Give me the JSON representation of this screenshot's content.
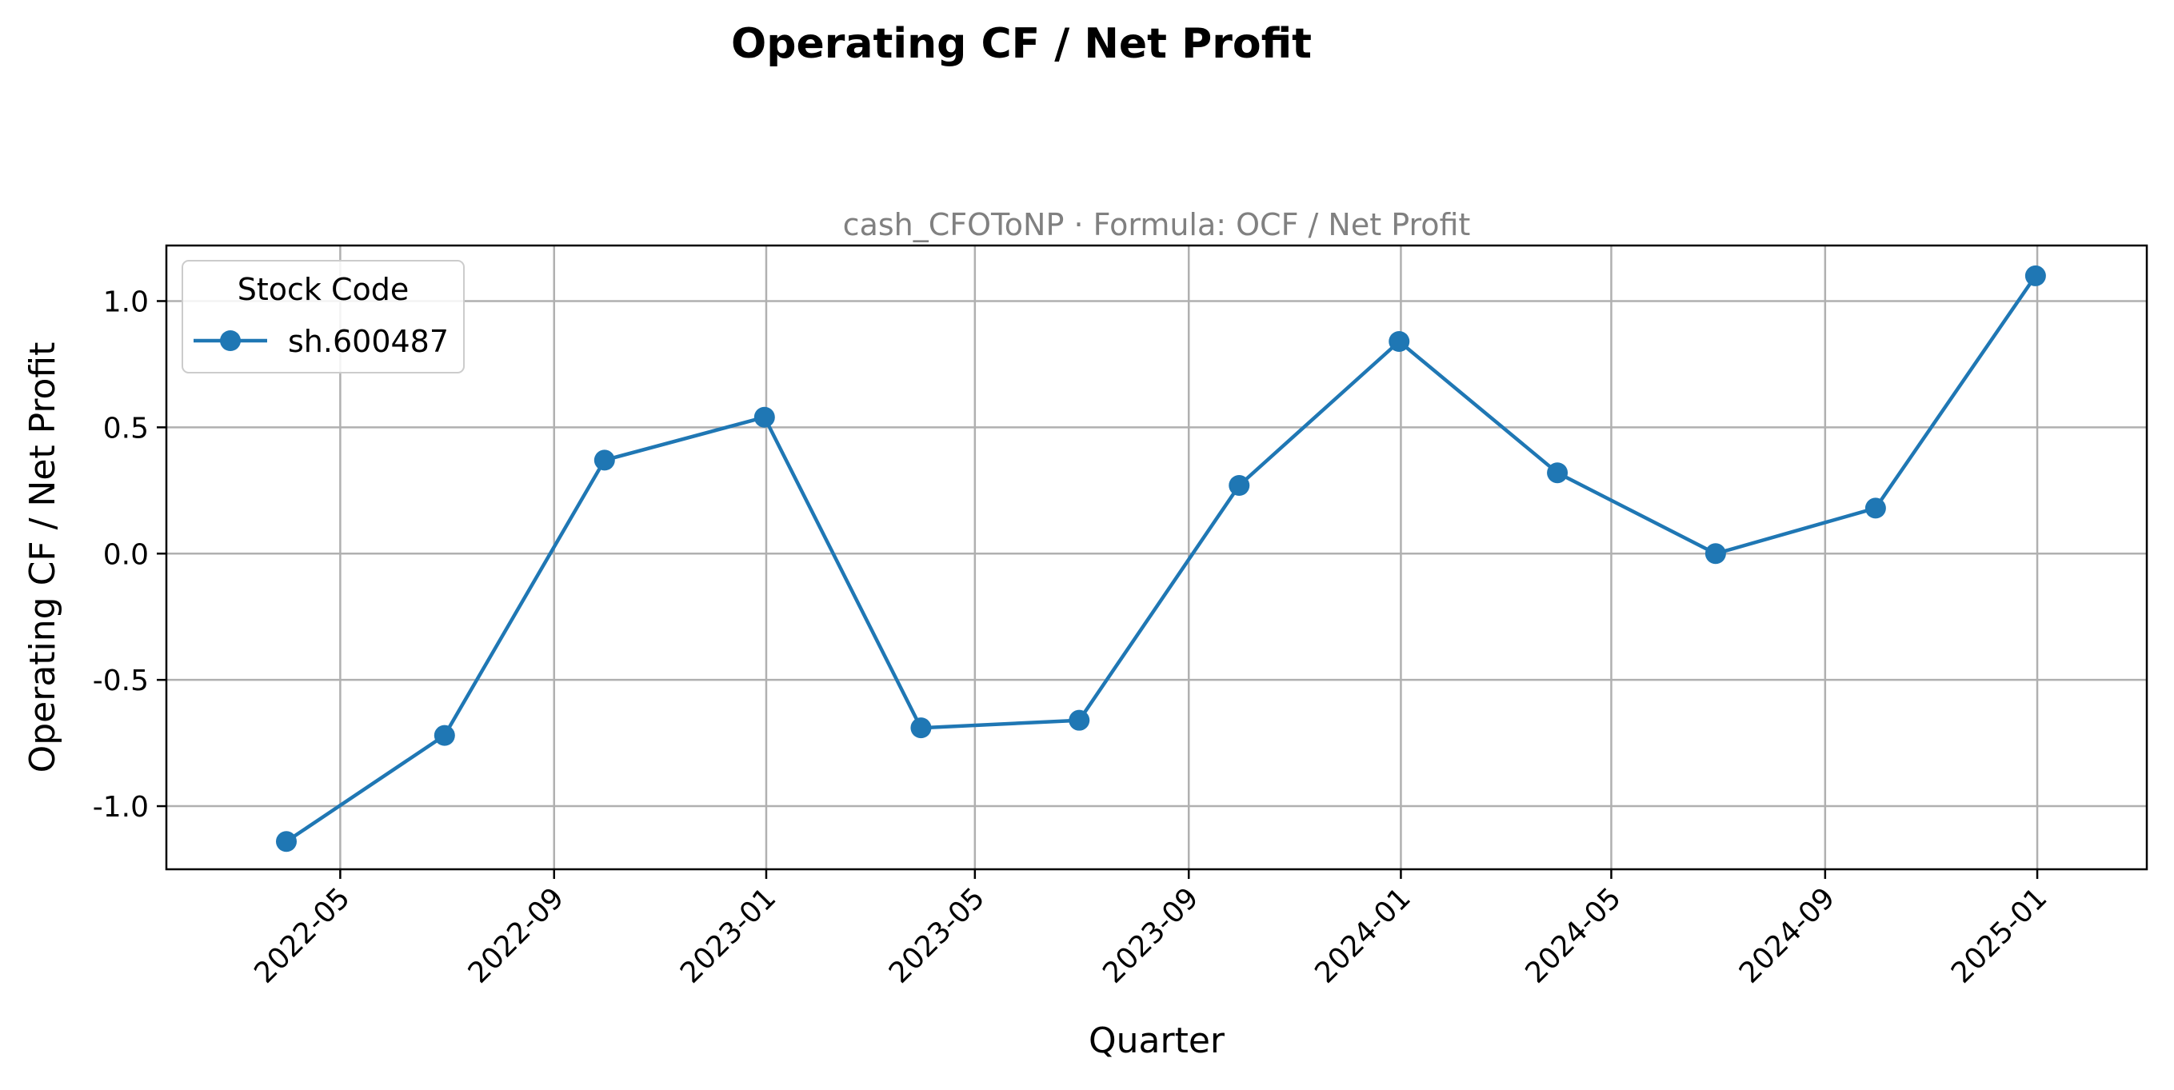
{
  "chart_data": {
    "type": "line",
    "title": "Operating CF / Net Profit",
    "subtitle": "cash_CFOToNP · Formula: OCF / Net Profit",
    "xlabel": "Quarter",
    "ylabel": "Operating CF / Net Profit",
    "ylim": [
      -1.25,
      1.22
    ],
    "xlim": [
      "2022-01-21",
      "2025-03-05"
    ],
    "grid": true,
    "legend": {
      "title": "Stock Code",
      "placement": "top-left"
    },
    "x_ticks": [
      "2022-05",
      "2022-09",
      "2023-01",
      "2023-05",
      "2023-09",
      "2024-01",
      "2024-05",
      "2024-09",
      "2025-01"
    ],
    "y_ticks": [
      "1.0",
      "0.5",
      "0.0",
      "-0.5",
      "-1.0"
    ],
    "x": [
      "2022-03-31",
      "2022-06-30",
      "2022-09-30",
      "2022-12-31",
      "2023-03-31",
      "2023-06-30",
      "2023-09-30",
      "2023-12-31",
      "2024-03-31",
      "2024-06-30",
      "2024-09-30",
      "2024-12-31"
    ],
    "series": [
      {
        "name": "sh.600487",
        "color": "#1f77b4",
        "values": [
          -1.14,
          -0.72,
          0.37,
          0.54,
          -0.69,
          -0.66,
          0.27,
          0.84,
          0.32,
          0.0,
          0.18,
          1.1
        ]
      }
    ]
  }
}
